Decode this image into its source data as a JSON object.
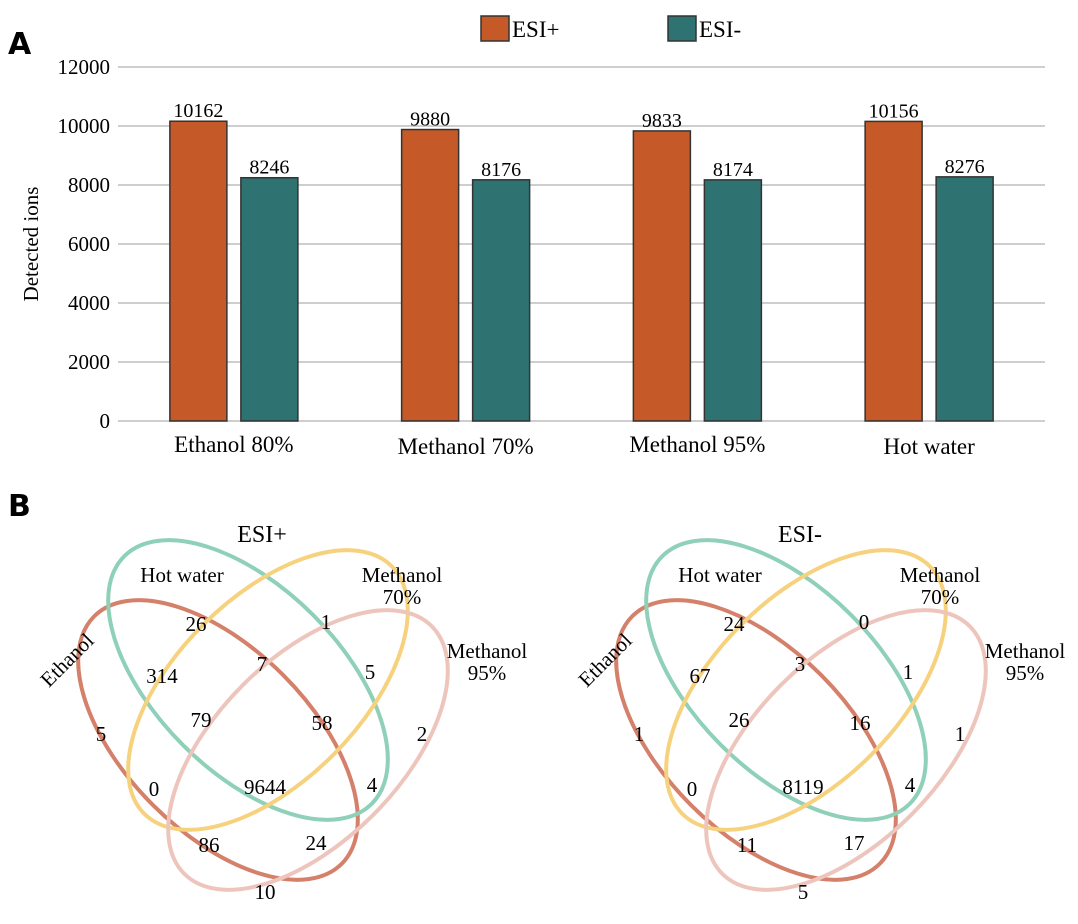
{
  "panels": {
    "a": "A",
    "b": "B"
  },
  "chart_data": [
    {
      "type": "bar",
      "categories": [
        "Ethanol 80%",
        "Methanol 70%",
        "Methanol 95%",
        "Hot water"
      ],
      "series": [
        {
          "name": "ESI+",
          "values": [
            10162,
            9880,
            9833,
            10156
          ],
          "color": "#c55a28"
        },
        {
          "name": "ESI-",
          "values": [
            8246,
            8176,
            8174,
            8276
          ],
          "color": "#2e7372"
        }
      ],
      "title": "",
      "xlabel": "",
      "ylabel": "Detected ions",
      "ylim": [
        0,
        12000
      ],
      "yticks": [
        0,
        2000,
        4000,
        6000,
        8000,
        10000,
        12000
      ],
      "grid": true,
      "legend": "top-center",
      "data_labels": true
    },
    {
      "type": "venn",
      "title": "ESI+",
      "sets": [
        "Ethanol",
        "Hot water",
        "Methanol 70%",
        "Methanol 95%"
      ],
      "set_colors": [
        "#d4806a",
        "#8fd0b8",
        "#f7d27e",
        "#eec5bd"
      ],
      "regions": {
        "Ethanol": 5,
        "Hot water": 26,
        "Methanol 70%": 1,
        "Methanol 95%": 2,
        "Ethanol & Hot water": 314,
        "Hot water & Methanol 70%": 7,
        "Methanol 70% & Methanol 95%": 5,
        "Ethanol & Methanol 70%": 0,
        "Hot water & Methanol 95%": 4,
        "Ethanol & Methanol 95%": 10,
        "Ethanol & Hot water & Methanol 70%": 79,
        "Hot water & Methanol 70% & Methanol 95%": 58,
        "Ethanol & Methanol 70% & Methanol 95%": 86,
        "Ethanol & Hot water & Methanol 95%": 24,
        "All": 9644
      }
    },
    {
      "type": "venn",
      "title": "ESI-",
      "sets": [
        "Ethanol",
        "Hot water",
        "Methanol 70%",
        "Methanol 95%"
      ],
      "set_colors": [
        "#d4806a",
        "#8fd0b8",
        "#f7d27e",
        "#eec5bd"
      ],
      "regions": {
        "Ethanol": 1,
        "Hot water": 24,
        "Methanol 70%": 0,
        "Methanol 95%": 1,
        "Ethanol & Hot water": 67,
        "Hot water & Methanol 70%": 3,
        "Methanol 70% & Methanol 95%": 1,
        "Ethanol & Methanol 70%": 0,
        "Hot water & Methanol 95%": 4,
        "Ethanol & Methanol 95%": 5,
        "Ethanol & Hot water & Methanol 70%": 26,
        "Hot water & Methanol 70% & Methanol 95%": 16,
        "Ethanol & Methanol 70% & Methanol 95%": 11,
        "Ethanol & Hot water & Methanol 95%": 17,
        "All": 8119
      }
    }
  ],
  "venn_labels": {
    "ethanol": "Ethanol",
    "hot_water": "Hot water",
    "methanol70_line1": "Methanol",
    "methanol70_line2": "70%",
    "methanol95_line1": "Methanol",
    "methanol95_line2": "95%"
  }
}
